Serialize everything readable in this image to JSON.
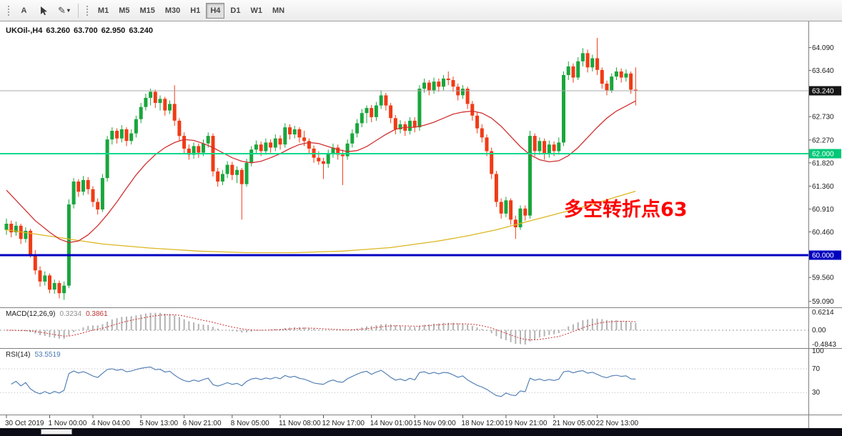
{
  "toolbar": {
    "tools": [
      {
        "name": "text-label-tool",
        "label": "A"
      },
      {
        "name": "cursor-tool",
        "icon": "cursor-arrow-icon"
      },
      {
        "name": "draw-tool",
        "icon": "pencil-icon",
        "glyph": "✎",
        "caret": "▾"
      }
    ],
    "timeframes": [
      "M1",
      "M5",
      "M15",
      "M30",
      "H1",
      "H4",
      "D1",
      "W1",
      "MN"
    ],
    "active_timeframe": "H4"
  },
  "chart": {
    "symbol": "UKOil-,H4",
    "ohlc_display": {
      "open": "63.260",
      "high": "63.700",
      "low": "62.950",
      "close": "63.240"
    },
    "annotation": {
      "text": "多空转折点63",
      "color": "#FF0000"
    },
    "price_axis": {
      "ticks": [
        "64.090",
        "63.640",
        "62.730",
        "62.270",
        "61.820",
        "61.360",
        "60.910",
        "60.460",
        "59.560",
        "59.090"
      ],
      "tick_values": [
        64.09,
        63.64,
        62.73,
        62.27,
        61.82,
        61.36,
        60.91,
        60.46,
        59.56,
        59.09
      ],
      "current_price_badge": {
        "label": "63.240",
        "value": 63.24,
        "bg": "#161616",
        "fg": "#ffffff"
      },
      "level_badges": [
        {
          "label": "62.000",
          "value": 62.0,
          "bg": "#00c878",
          "fg": "#ffffff"
        },
        {
          "label": "60.000",
          "value": 60.0,
          "bg": "#0000c0",
          "fg": "#ffffff"
        }
      ]
    },
    "hlines": [
      {
        "name": "current-price-line",
        "value": 63.24,
        "color": "#a8a8a8",
        "width": 1
      },
      {
        "name": "green-level-line",
        "value": 62.0,
        "color": "#00d98b",
        "width": 2
      },
      {
        "name": "blue-level-line",
        "value": 60.0,
        "color": "#0000c0",
        "width": 3
      }
    ],
    "time_axis": [
      {
        "index": 0,
        "label": "30 Oct 2019"
      },
      {
        "index": 9,
        "label": "1 Nov 00:00"
      },
      {
        "index": 18,
        "label": "4 Nov 04:00"
      },
      {
        "index": 28,
        "label": "5 Nov 13:00"
      },
      {
        "index": 37,
        "label": "6 Nov 21:00"
      },
      {
        "index": 47,
        "label": "8 Nov 05:00"
      },
      {
        "index": 57,
        "label": "11 Nov 08:00"
      },
      {
        "index": 66,
        "label": "12 Nov 17:00"
      },
      {
        "index": 76,
        "label": "14 Nov 01:00"
      },
      {
        "index": 85,
        "label": "15 Nov 09:00"
      },
      {
        "index": 95,
        "label": "18 Nov 12:00"
      },
      {
        "index": 104,
        "label": "19 Nov 21:00"
      },
      {
        "index": 114,
        "label": "21 Nov 05:00"
      },
      {
        "index": 123,
        "label": "22 Nov 13:00"
      }
    ]
  },
  "indicators": {
    "macd": {
      "label": "MACD(12,26,9)",
      "value1": "0.3234",
      "value2": "0.3861",
      "axis": [
        "0.6214",
        "0.00",
        "-0.4843"
      ],
      "hist_color": "#b3b3b3",
      "signal_color": "#cc2e2e"
    },
    "rsi": {
      "label": "RSI(14)",
      "value": "53.5519",
      "axis": [
        "100",
        "70",
        "30"
      ],
      "levels": [
        70,
        30
      ],
      "line_color": "#4878b0",
      "level_color": "#b9b9c9"
    }
  },
  "chart_data": {
    "type": "candlestick",
    "symbol": "UKOil-",
    "timeframe": "H4",
    "visible_price_range": [
      59.0,
      64.55
    ],
    "last_ohlc": {
      "open": 63.26,
      "high": 63.7,
      "low": 62.95,
      "close": 63.24
    },
    "up_color": "#19a63d",
    "down_color": "#f03b16",
    "candles": [
      [
        60.5,
        60.72,
        60.4,
        60.62
      ],
      [
        60.62,
        60.68,
        60.35,
        60.45
      ],
      [
        60.45,
        60.66,
        60.38,
        60.58
      ],
      [
        60.58,
        60.62,
        60.22,
        60.32
      ],
      [
        60.32,
        60.55,
        60.25,
        60.48
      ],
      [
        60.48,
        60.52,
        59.95,
        60.02
      ],
      [
        60.02,
        60.1,
        59.62,
        59.7
      ],
      [
        59.7,
        59.78,
        59.38,
        59.48
      ],
      [
        59.48,
        59.68,
        59.4,
        59.6
      ],
      [
        59.6,
        59.64,
        59.25,
        59.32
      ],
      [
        59.32,
        59.52,
        59.24,
        59.45
      ],
      [
        59.45,
        59.5,
        59.15,
        59.25
      ],
      [
        59.25,
        59.48,
        59.12,
        59.4
      ],
      [
        59.4,
        61.1,
        59.35,
        61.0
      ],
      [
        61.0,
        61.52,
        60.92,
        61.45
      ],
      [
        61.45,
        61.5,
        61.15,
        61.25
      ],
      [
        61.25,
        61.56,
        61.18,
        61.48
      ],
      [
        61.48,
        61.54,
        61.2,
        61.3
      ],
      [
        61.3,
        61.36,
        60.95,
        61.05
      ],
      [
        61.05,
        61.12,
        60.8,
        60.9
      ],
      [
        60.9,
        61.6,
        60.85,
        61.52
      ],
      [
        61.52,
        62.35,
        61.45,
        62.28
      ],
      [
        62.28,
        62.52,
        62.18,
        62.45
      ],
      [
        62.45,
        62.5,
        62.2,
        62.3
      ],
      [
        62.3,
        62.56,
        62.22,
        62.48
      ],
      [
        62.48,
        62.52,
        62.15,
        62.25
      ],
      [
        62.25,
        62.48,
        62.18,
        62.4
      ],
      [
        62.4,
        62.75,
        62.32,
        62.68
      ],
      [
        62.68,
        63.0,
        62.6,
        62.92
      ],
      [
        62.92,
        63.18,
        62.85,
        63.1
      ],
      [
        63.1,
        63.28,
        62.95,
        63.22
      ],
      [
        63.22,
        63.26,
        62.9,
        63.0
      ],
      [
        63.0,
        63.15,
        62.85,
        63.08
      ],
      [
        63.08,
        63.12,
        62.75,
        62.85
      ],
      [
        62.85,
        63.05,
        62.78,
        62.98
      ],
      [
        62.98,
        63.35,
        62.55,
        62.65
      ],
      [
        62.65,
        62.7,
        62.25,
        62.35
      ],
      [
        62.35,
        62.42,
        62.0,
        62.1
      ],
      [
        62.1,
        62.18,
        61.88,
        61.98
      ],
      [
        61.98,
        62.22,
        61.9,
        62.15
      ],
      [
        62.15,
        62.2,
        61.92,
        62.02
      ],
      [
        62.02,
        62.28,
        61.95,
        62.2
      ],
      [
        62.2,
        62.42,
        62.12,
        62.35
      ],
      [
        62.35,
        62.4,
        61.55,
        61.65
      ],
      [
        61.65,
        61.72,
        61.35,
        61.45
      ],
      [
        61.45,
        61.68,
        61.38,
        61.6
      ],
      [
        61.6,
        61.85,
        61.52,
        61.78
      ],
      [
        61.78,
        61.84,
        61.48,
        61.58
      ],
      [
        61.58,
        61.75,
        61.42,
        61.68
      ],
      [
        61.68,
        61.72,
        60.7,
        61.4
      ],
      [
        61.4,
        61.9,
        61.35,
        61.82
      ],
      [
        61.82,
        62.15,
        61.75,
        62.08
      ],
      [
        62.08,
        62.26,
        62.0,
        62.18
      ],
      [
        62.18,
        62.24,
        61.95,
        62.05
      ],
      [
        62.05,
        62.3,
        61.98,
        62.22
      ],
      [
        62.22,
        62.28,
        62.02,
        62.12
      ],
      [
        62.12,
        62.38,
        62.05,
        62.3
      ],
      [
        62.3,
        62.36,
        62.08,
        62.18
      ],
      [
        62.18,
        62.6,
        62.12,
        62.52
      ],
      [
        62.52,
        62.58,
        62.28,
        62.38
      ],
      [
        62.38,
        62.55,
        62.3,
        62.48
      ],
      [
        62.48,
        62.52,
        62.22,
        62.32
      ],
      [
        62.32,
        62.45,
        62.15,
        62.25
      ],
      [
        62.25,
        62.3,
        62.0,
        62.1
      ],
      [
        62.1,
        62.16,
        61.82,
        61.92
      ],
      [
        61.92,
        62.05,
        61.78,
        61.85
      ],
      [
        61.85,
        61.92,
        61.5,
        61.8
      ],
      [
        61.8,
        62.08,
        61.72,
        62.0
      ],
      [
        62.0,
        62.2,
        61.92,
        62.12
      ],
      [
        62.12,
        62.18,
        61.88,
        61.98
      ],
      [
        61.98,
        62.08,
        61.38,
        61.95
      ],
      [
        61.95,
        62.28,
        61.88,
        62.2
      ],
      [
        62.2,
        62.48,
        62.12,
        62.4
      ],
      [
        62.4,
        62.68,
        62.32,
        62.6
      ],
      [
        62.6,
        62.88,
        62.52,
        62.8
      ],
      [
        62.8,
        62.95,
        62.6,
        62.9
      ],
      [
        62.9,
        62.96,
        62.62,
        62.72
      ],
      [
        62.72,
        63.02,
        62.65,
        62.95
      ],
      [
        62.95,
        63.25,
        62.88,
        63.15
      ],
      [
        63.15,
        63.2,
        62.85,
        62.95
      ],
      [
        62.95,
        63.0,
        62.6,
        62.7
      ],
      [
        62.7,
        62.76,
        62.38,
        62.48
      ],
      [
        62.48,
        62.66,
        62.4,
        62.58
      ],
      [
        62.58,
        62.64,
        62.35,
        62.45
      ],
      [
        62.45,
        62.72,
        62.38,
        62.65
      ],
      [
        62.65,
        62.72,
        62.42,
        62.52
      ],
      [
        62.52,
        63.35,
        62.45,
        63.28
      ],
      [
        63.28,
        63.48,
        63.2,
        63.4
      ],
      [
        63.4,
        63.45,
        63.15,
        63.25
      ],
      [
        63.25,
        63.5,
        63.18,
        63.42
      ],
      [
        63.42,
        63.48,
        63.22,
        63.32
      ],
      [
        63.32,
        63.55,
        63.25,
        63.48
      ],
      [
        63.48,
        63.62,
        63.35,
        63.45
      ],
      [
        63.45,
        63.52,
        63.22,
        63.32
      ],
      [
        63.32,
        63.38,
        63.05,
        63.15
      ],
      [
        63.15,
        63.35,
        63.08,
        63.28
      ],
      [
        63.28,
        63.32,
        62.88,
        62.98
      ],
      [
        62.98,
        63.04,
        62.65,
        62.75
      ],
      [
        62.75,
        62.82,
        62.4,
        62.5
      ],
      [
        62.5,
        62.58,
        62.22,
        62.32
      ],
      [
        62.32,
        62.38,
        61.95,
        62.05
      ],
      [
        62.05,
        62.12,
        61.5,
        61.6
      ],
      [
        61.6,
        61.66,
        60.95,
        61.05
      ],
      [
        61.05,
        61.12,
        60.72,
        60.82
      ],
      [
        60.82,
        61.15,
        60.75,
        61.08
      ],
      [
        61.08,
        61.12,
        60.6,
        60.7
      ],
      [
        60.7,
        60.78,
        60.32,
        60.55
      ],
      [
        60.55,
        60.98,
        60.5,
        60.92
      ],
      [
        60.92,
        60.98,
        60.68,
        60.78
      ],
      [
        60.78,
        62.45,
        60.72,
        62.35
      ],
      [
        62.35,
        62.4,
        61.95,
        62.05
      ],
      [
        62.05,
        62.32,
        61.98,
        62.25
      ],
      [
        62.25,
        62.3,
        61.88,
        62.0
      ],
      [
        62.0,
        62.26,
        61.92,
        62.18
      ],
      [
        62.18,
        62.24,
        61.95,
        62.05
      ],
      [
        62.05,
        62.32,
        61.98,
        62.22
      ],
      [
        62.22,
        63.62,
        62.15,
        63.55
      ],
      [
        63.55,
        63.82,
        63.45,
        63.72
      ],
      [
        63.72,
        63.78,
        63.4,
        63.5
      ],
      [
        63.5,
        63.9,
        63.45,
        63.82
      ],
      [
        63.82,
        64.08,
        63.72,
        63.98
      ],
      [
        63.98,
        64.05,
        63.6,
        63.7
      ],
      [
        63.7,
        63.95,
        63.62,
        63.88
      ],
      [
        63.88,
        64.28,
        63.55,
        63.65
      ],
      [
        63.65,
        63.7,
        63.28,
        63.38
      ],
      [
        63.38,
        63.44,
        63.15,
        63.25
      ],
      [
        63.25,
        63.58,
        63.2,
        63.52
      ],
      [
        63.52,
        63.7,
        63.45,
        63.62
      ],
      [
        63.62,
        63.68,
        63.4,
        63.5
      ],
      [
        63.5,
        63.66,
        63.42,
        63.58
      ],
      [
        63.58,
        63.62,
        63.18,
        63.26
      ],
      [
        63.26,
        63.7,
        62.95,
        63.24
      ]
    ],
    "ma_fast": {
      "color": "#d13030",
      "points": [
        [
          0,
          61.28
        ],
        [
          3,
          60.98
        ],
        [
          6,
          60.68
        ],
        [
          9,
          60.45
        ],
        [
          11,
          60.32
        ],
        [
          13,
          60.25
        ],
        [
          15,
          60.28
        ],
        [
          17,
          60.4
        ],
        [
          19,
          60.58
        ],
        [
          21,
          60.8
        ],
        [
          23,
          61.05
        ],
        [
          25,
          61.32
        ],
        [
          27,
          61.58
        ],
        [
          29,
          61.8
        ],
        [
          31,
          61.98
        ],
        [
          33,
          62.12
        ],
        [
          35,
          62.22
        ],
        [
          37,
          62.28
        ],
        [
          39,
          62.26
        ],
        [
          41,
          62.2
        ],
        [
          43,
          62.12
        ],
        [
          45,
          62.02
        ],
        [
          47,
          61.92
        ],
        [
          49,
          61.85
        ],
        [
          51,
          61.82
        ],
        [
          53,
          61.85
        ],
        [
          55,
          61.92
        ],
        [
          57,
          62.0
        ],
        [
          59,
          62.1
        ],
        [
          61,
          62.18
        ],
        [
          63,
          62.22
        ],
        [
          65,
          62.2
        ],
        [
          67,
          62.14
        ],
        [
          69,
          62.08
        ],
        [
          71,
          62.04
        ],
        [
          73,
          62.06
        ],
        [
          75,
          62.14
        ],
        [
          77,
          62.26
        ],
        [
          79,
          62.38
        ],
        [
          81,
          62.48
        ],
        [
          83,
          62.52
        ],
        [
          85,
          62.52
        ],
        [
          87,
          62.56
        ],
        [
          89,
          62.62
        ],
        [
          91,
          62.7
        ],
        [
          93,
          62.78
        ],
        [
          95,
          62.82
        ],
        [
          97,
          62.84
        ],
        [
          99,
          62.8
        ],
        [
          101,
          62.7
        ],
        [
          103,
          62.54
        ],
        [
          105,
          62.34
        ],
        [
          107,
          62.14
        ],
        [
          109,
          61.98
        ],
        [
          111,
          61.88
        ],
        [
          113,
          61.84
        ],
        [
          115,
          61.86
        ],
        [
          117,
          61.96
        ],
        [
          119,
          62.12
        ],
        [
          121,
          62.32
        ],
        [
          123,
          62.52
        ],
        [
          125,
          62.7
        ],
        [
          127,
          62.84
        ],
        [
          129,
          62.94
        ],
        [
          131,
          63.04
        ]
      ]
    },
    "ma_slow": {
      "color": "#ddb620",
      "points": [
        [
          0,
          60.5
        ],
        [
          10,
          60.36
        ],
        [
          20,
          60.22
        ],
        [
          30,
          60.14
        ],
        [
          40,
          60.08
        ],
        [
          50,
          60.05
        ],
        [
          60,
          60.05
        ],
        [
          70,
          60.08
        ],
        [
          80,
          60.15
        ],
        [
          90,
          60.28
        ],
        [
          96,
          60.38
        ],
        [
          102,
          60.5
        ],
        [
          106,
          60.6
        ],
        [
          110,
          60.7
        ],
        [
          114,
          60.8
        ],
        [
          118,
          60.9
        ],
        [
          122,
          61.0
        ],
        [
          126,
          61.12
        ],
        [
          131,
          61.26
        ]
      ]
    }
  }
}
